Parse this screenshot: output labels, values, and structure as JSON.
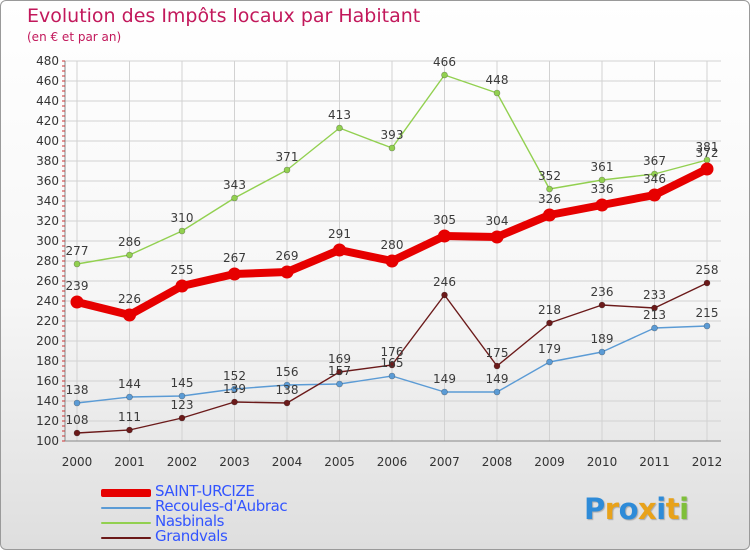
{
  "chart_data": {
    "type": "line",
    "title": "Evolution des Impôts locaux par Habitant",
    "subtitle": "(en € et par an)",
    "xlabel": "",
    "ylabel": "",
    "x": [
      2000,
      2001,
      2002,
      2003,
      2004,
      2005,
      2006,
      2007,
      2008,
      2009,
      2010,
      2011,
      2012
    ],
    "ylim": [
      100,
      480
    ],
    "yticks": [
      100,
      120,
      140,
      160,
      180,
      200,
      220,
      240,
      260,
      280,
      300,
      320,
      340,
      360,
      380,
      400,
      420,
      440,
      460,
      480
    ],
    "grid": true,
    "legend_position": "bottom-left",
    "series": [
      {
        "name": "SAINT-URCIZE",
        "color": "#e60000",
        "emphasis": true,
        "values": [
          239,
          226,
          255,
          267,
          269,
          291,
          280,
          305,
          304,
          326,
          336,
          346,
          372
        ]
      },
      {
        "name": "Recoules-d'Aubrac",
        "color": "#5b9bd5",
        "values": [
          138,
          144,
          145,
          152,
          156,
          157,
          165,
          149,
          149,
          179,
          189,
          213,
          215
        ]
      },
      {
        "name": "Nasbinals",
        "color": "#92d050",
        "values": [
          277,
          286,
          310,
          343,
          371,
          413,
          393,
          466,
          448,
          352,
          361,
          367,
          381
        ]
      },
      {
        "name": "Grandvals",
        "color": "#6b1a1a",
        "values": [
          108,
          111,
          123,
          139,
          138,
          169,
          176,
          246,
          175,
          218,
          236,
          233,
          258
        ]
      }
    ],
    "data_labels": {
      "SAINT-URCIZE": [
        "239",
        "226",
        "255",
        "267",
        "269",
        "291",
        "280",
        "305",
        "304",
        "326",
        "336",
        "346",
        "372"
      ],
      "Recoules-d'Aubrac": [
        "138",
        "144",
        "145",
        "152",
        "156",
        "157",
        "165",
        "149",
        "149",
        "179",
        "189",
        "213",
        "215"
      ],
      "Nasbinals": [
        "277",
        "286",
        "310",
        "343",
        "371",
        "413",
        "393",
        "466",
        "448",
        "352",
        "361",
        "367",
        "381"
      ],
      "Grandvals": [
        "108",
        "111",
        "123",
        "139",
        "138",
        "169",
        "176",
        "246",
        "175",
        "218",
        "236",
        "233",
        "258"
      ]
    }
  },
  "legend": {
    "items": [
      {
        "label": "SAINT-URCIZE",
        "color": "#e60000",
        "text_color": "#3355ff"
      },
      {
        "label": "Recoules-d'Aubrac",
        "color": "#5b9bd5",
        "text_color": "#3355ff"
      },
      {
        "label": "Nasbinals",
        "color": "#92d050",
        "text_color": "#3355ff"
      },
      {
        "label": "Grandvals",
        "color": "#6b1a1a",
        "text_color": "#3355ff"
      }
    ]
  },
  "logo": {
    "text": "Proxiti",
    "colors": [
      "#2e8bd8",
      "#e8a21a",
      "#2e8bd8",
      "#e8a21a",
      "#2e8bd8",
      "#e8a21a",
      "#7fbf3a"
    ]
  }
}
